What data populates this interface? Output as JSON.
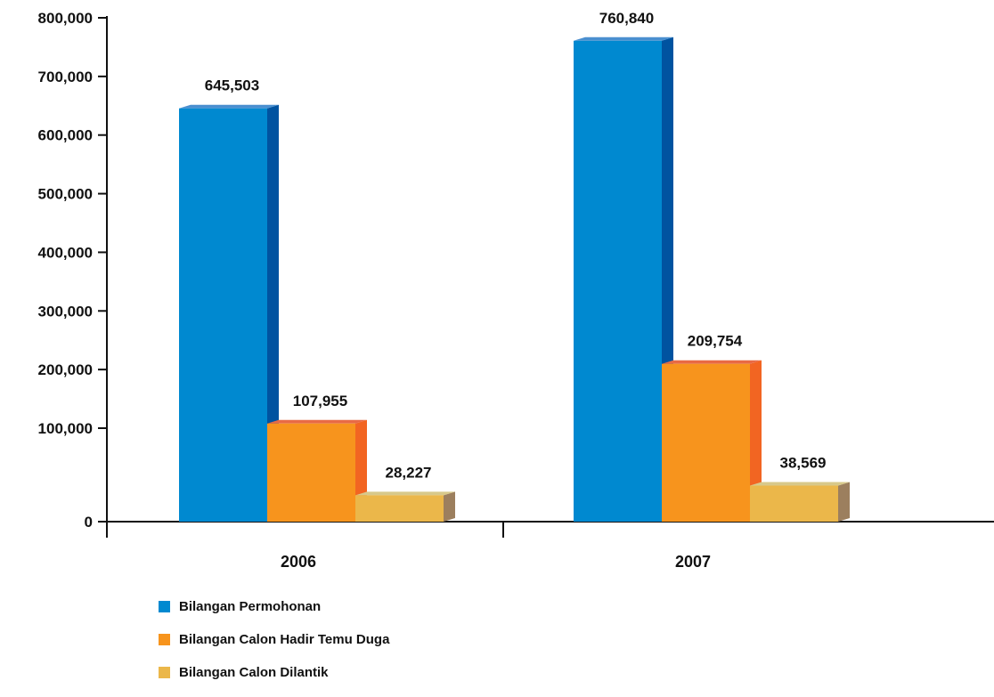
{
  "chart_data": {
    "type": "bar",
    "categories": [
      "2006",
      "2007"
    ],
    "series": [
      {
        "name": "Bilangan Permohonan",
        "values": [
          645503,
          760840
        ],
        "labels": [
          "645,503",
          "760,840"
        ],
        "color": "#0089D0",
        "side_color": "#0053A0",
        "top_color": "#4A8FD0"
      },
      {
        "name": "Bilangan Calon Hadir Temu Duga",
        "values": [
          107955,
          209754
        ],
        "labels": [
          "107,955",
          "209,754"
        ],
        "color": "#F7941D",
        "side_color": "#F26522",
        "top_color": "#E86A45"
      },
      {
        "name": "Bilangan Calon Dilantik",
        "values": [
          28227,
          38569
        ],
        "labels": [
          "28,227",
          "38,569"
        ],
        "color": "#EBB74A",
        "side_color": "#9C7F5E",
        "top_color": "#D8C98A"
      }
    ],
    "y_ticks": [
      {
        "value": 0,
        "label": "0"
      },
      {
        "value": 100000,
        "label": "100,000"
      },
      {
        "value": 200000,
        "label": "200,000"
      },
      {
        "value": 300000,
        "label": "300,000"
      },
      {
        "value": 400000,
        "label": "400,000"
      },
      {
        "value": 500000,
        "label": "500,000"
      },
      {
        "value": 600000,
        "label": "600,000"
      },
      {
        "value": 700000,
        "label": "700,000"
      },
      {
        "value": 800000,
        "label": "800,000"
      }
    ],
    "ylim": [
      0,
      800000
    ],
    "grid": false,
    "legend_position": "bottom-left",
    "title": "",
    "xlabel": "",
    "ylabel": ""
  }
}
